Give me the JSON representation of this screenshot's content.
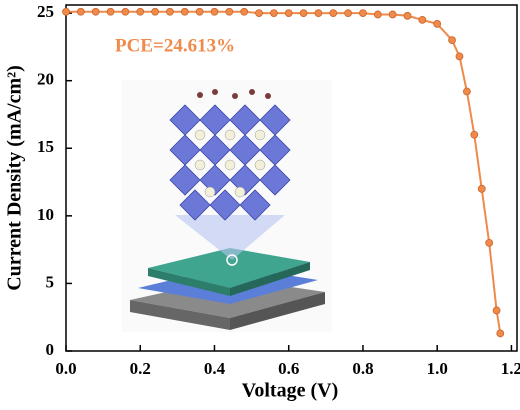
{
  "chart_data": {
    "type": "line",
    "x_label": "Voltage (V)",
    "y_label": "Current Density (mA/cm²)",
    "annotation": "PCE=24.613%",
    "x": [
      0,
      0.04,
      0.08,
      0.12,
      0.16,
      0.2,
      0.24,
      0.28,
      0.32,
      0.36,
      0.4,
      0.44,
      0.48,
      0.52,
      0.56,
      0.6,
      0.64,
      0.68,
      0.72,
      0.76,
      0.8,
      0.84,
      0.88,
      0.92,
      0.96,
      1.0,
      1.04,
      1.06,
      1.08,
      1.1,
      1.12,
      1.14,
      1.16,
      1.17
    ],
    "values": [
      25.1,
      25.1,
      25.1,
      25.1,
      25.1,
      25.1,
      25.1,
      25.1,
      25.1,
      25.1,
      25.1,
      25.1,
      25.1,
      25.0,
      25.0,
      25.0,
      25.0,
      25.0,
      25.0,
      25.0,
      25.0,
      24.9,
      24.9,
      24.8,
      24.5,
      24.2,
      23.0,
      21.8,
      19.2,
      16.0,
      12.0,
      8.0,
      3.0,
      1.3
    ],
    "color": "#f08a4b",
    "xlim": [
      0,
      1.215
    ],
    "ylim": [
      0,
      25.6
    ],
    "xticks": [
      {
        "value": 0,
        "label": "0.0"
      },
      0.2,
      0.4,
      0.6,
      0.8,
      {
        "value": 1,
        "label": "1.0"
      },
      1.2
    ],
    "yticks": [
      0,
      5,
      10,
      15,
      20,
      25
    ]
  }
}
